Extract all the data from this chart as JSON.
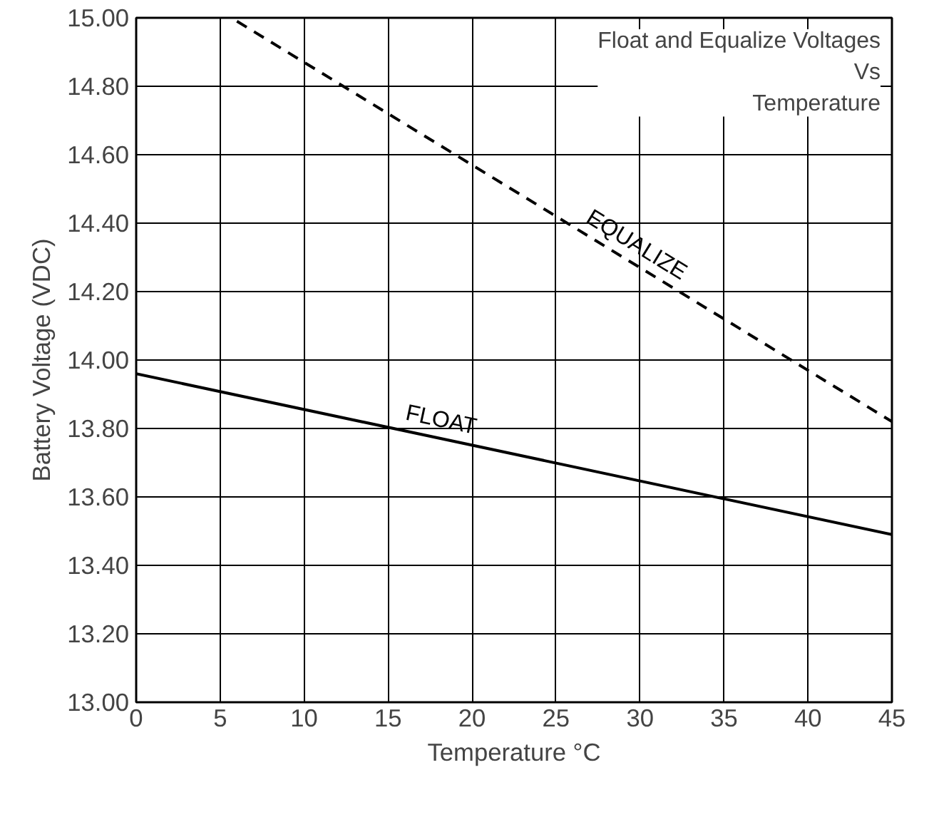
{
  "chart_data": {
    "type": "line",
    "title": "Float and Equalize Voltages\nVs\nTemperature",
    "xlabel": "Temperature °C",
    "ylabel": "Battery Voltage (VDC)",
    "series": [
      {
        "name": "EQUALIZE",
        "color": "#000000",
        "line_style": "dashed",
        "x": [
          6,
          45
        ],
        "values": [
          14.99,
          13.82
        ]
      },
      {
        "name": "FLOAT",
        "color": "#000000",
        "line_style": "solid",
        "x": [
          0,
          45
        ],
        "values": [
          13.96,
          13.49
        ]
      }
    ],
    "xlim": [
      0,
      45
    ],
    "xticks": [
      0,
      5,
      10,
      15,
      20,
      25,
      30,
      35,
      40,
      45
    ],
    "ylim": [
      13,
      15
    ],
    "yticks": [
      {
        "value": 13,
        "label": "13.00"
      },
      {
        "value": 13.2,
        "label": "13.20"
      },
      {
        "value": 13.4,
        "label": "13.40"
      },
      {
        "value": 13.6,
        "label": "13.60"
      },
      {
        "value": 13.8,
        "label": "13.80"
      },
      {
        "value": 14,
        "label": "14.00"
      },
      {
        "value": 14.2,
        "label": "14.20"
      },
      {
        "value": 14.4,
        "label": "14.40"
      },
      {
        "value": 14.6,
        "label": "14.60"
      },
      {
        "value": 14.8,
        "label": "14.80"
      },
      {
        "value": 15,
        "label": "15.00"
      }
    ],
    "grid": true,
    "marker": "none"
  }
}
